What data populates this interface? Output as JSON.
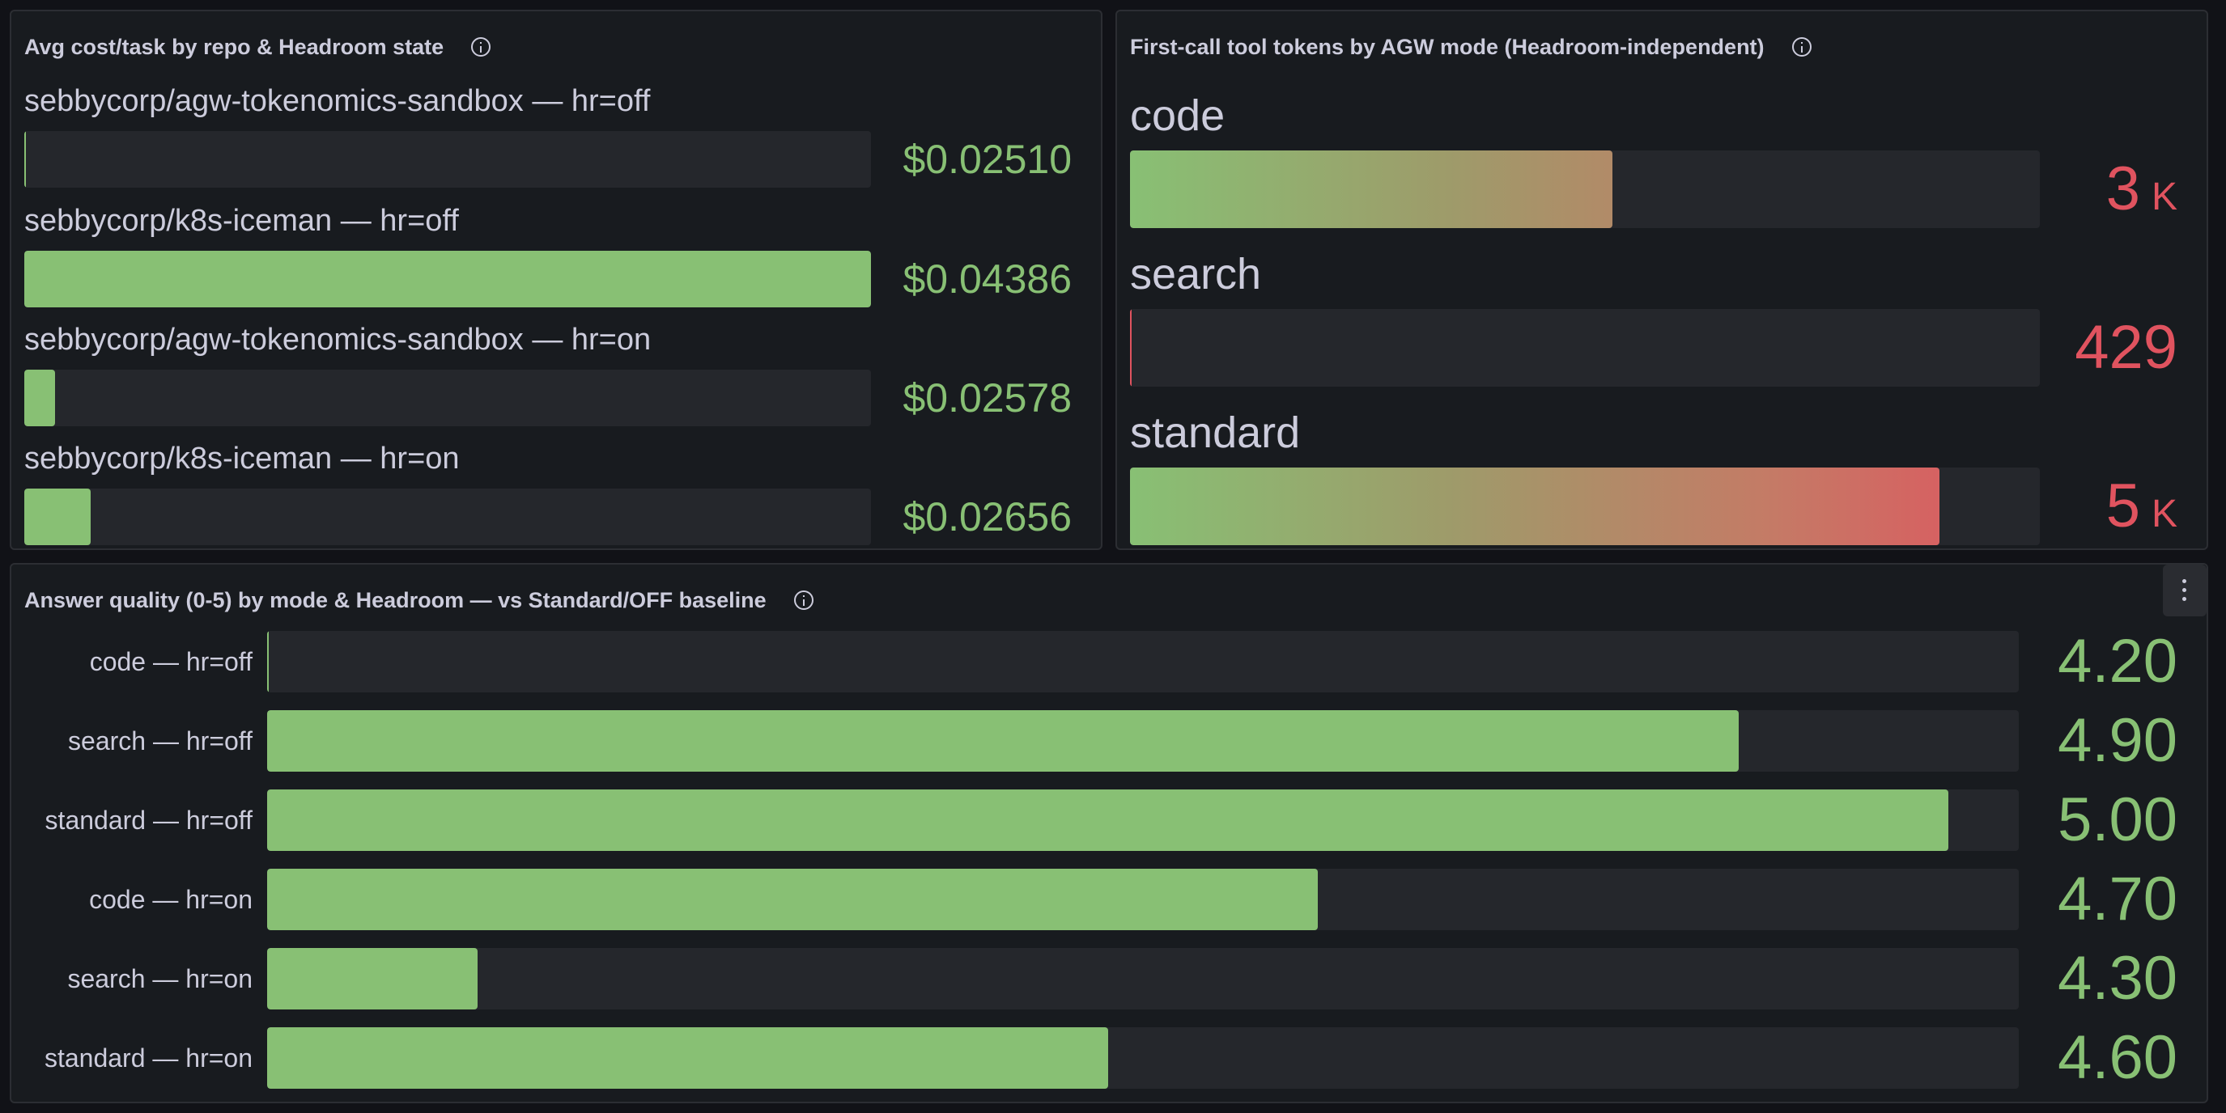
{
  "colors": {
    "green": "#88c074",
    "red": "#e0535f"
  },
  "cost_panel": {
    "title": "Avg cost/task by repo & Headroom state",
    "rows": [
      {
        "label": "sebbycorp/agw-tokenomics-sandbox — hr=off",
        "value": "$0.02510",
        "level": 0.0
      },
      {
        "label": "sebbycorp/k8s-iceman — hr=off",
        "value": "$0.04386",
        "level": 1.0
      },
      {
        "label": "sebbycorp/agw-tokenomics-sandbox — hr=on",
        "value": "$0.02578",
        "level": 0.036
      },
      {
        "label": "sebbycorp/k8s-iceman — hr=on",
        "value": "$0.02656",
        "level": 0.078
      }
    ]
  },
  "tokens_panel": {
    "title": "First-call tool tokens by AGW mode (Headroom-independent)",
    "rows": [
      {
        "label": "code",
        "value": "3",
        "unit": "K",
        "level": 0.53
      },
      {
        "label": "search",
        "value": "429",
        "unit": "",
        "level": 0.0
      },
      {
        "label": "standard",
        "value": "5",
        "unit": "K",
        "level": 0.89
      }
    ]
  },
  "quality_panel": {
    "title": "Answer quality (0-5) by mode & Headroom — vs Standard/OFF baseline",
    "rows": [
      {
        "label": "code — hr=off",
        "value": "4.20",
        "level": 0.0
      },
      {
        "label": "search — hr=off",
        "value": "4.90",
        "level": 0.84
      },
      {
        "label": "standard — hr=off",
        "value": "5.00",
        "level": 0.96
      },
      {
        "label": "code — hr=on",
        "value": "4.70",
        "level": 0.6
      },
      {
        "label": "search — hr=on",
        "value": "4.30",
        "level": 0.12
      },
      {
        "label": "standard — hr=on",
        "value": "4.60",
        "level": 0.48
      }
    ]
  }
}
